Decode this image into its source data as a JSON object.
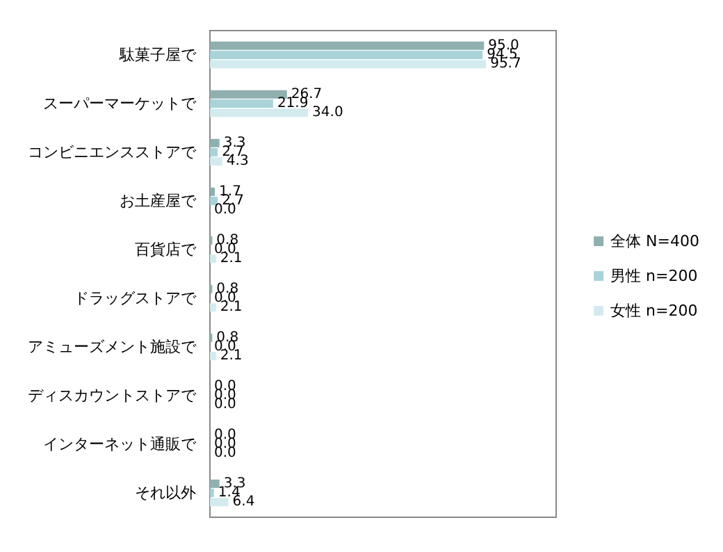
{
  "chart_data": {
    "type": "bar",
    "orientation": "horizontal",
    "legend": "right",
    "grid": false,
    "xlim": [
      0,
      120
    ],
    "categories": [
      "駄菓子屋で",
      "スーパーマーケットで",
      "コンビニエンスストアで",
      "お土産屋で",
      "百貨店で",
      "ドラッグストアで",
      "アミューズメント施設で",
      "ディスカウントストアで",
      "インターネット通販で",
      "それ以外"
    ],
    "series": [
      {
        "name": "全体 N=400",
        "color": "#8fb0ae",
        "values": [
          95.0,
          26.7,
          3.3,
          1.7,
          0.8,
          0.8,
          0.8,
          0.0,
          0.0,
          3.3
        ],
        "value_labels": [
          "95.0",
          "26.7",
          "3.3",
          "1.7",
          "0.8",
          "0.8",
          "0.8",
          "0.0",
          "0.0",
          "3.3"
        ]
      },
      {
        "name": "男性 n=200",
        "color": "#a9d3d9",
        "values": [
          94.5,
          21.9,
          2.7,
          2.7,
          0.0,
          0.0,
          0.0,
          0.0,
          0.0,
          1.4
        ],
        "value_labels": [
          "94.5",
          "21.9",
          "2.7",
          "2.7",
          "0.0",
          "0.0",
          "0.0",
          "0.0",
          "0.0",
          "1.4"
        ]
      },
      {
        "name": "女性 n=200",
        "color": "#d3ebee",
        "values": [
          95.7,
          34.0,
          4.3,
          0.0,
          2.1,
          2.1,
          2.1,
          0.0,
          0.0,
          6.4
        ],
        "value_labels": [
          "95.7",
          "34.0",
          "4.3",
          "0.0",
          "2.1",
          "2.1",
          "2.1",
          "0.0",
          "0.0",
          "6.4"
        ]
      }
    ]
  }
}
